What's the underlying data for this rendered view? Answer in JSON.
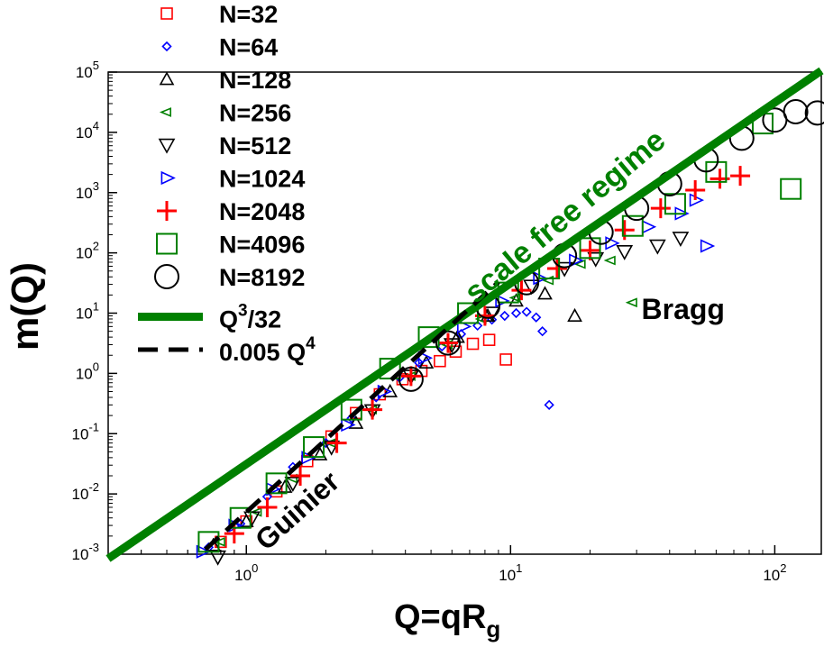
{
  "chart_data": {
    "type": "scatter",
    "xlabel": "Q=qR",
    "xlabel_sub": "g",
    "ylabel": "m(Q)",
    "xscale": "log",
    "yscale": "log",
    "xlim": [
      0.3,
      150
    ],
    "ylim": [
      0.001,
      100000
    ],
    "x_ticks": [
      {
        "value": 1,
        "base": "10",
        "exp": "0"
      },
      {
        "value": 10,
        "base": "10",
        "exp": "1"
      },
      {
        "value": 100,
        "base": "10",
        "exp": "2"
      }
    ],
    "y_ticks": [
      {
        "value": 0.001,
        "base": "10",
        "exp": "-3"
      },
      {
        "value": 0.01,
        "base": "10",
        "exp": "-2"
      },
      {
        "value": 0.1,
        "base": "10",
        "exp": "-1"
      },
      {
        "value": 1,
        "base": "10",
        "exp": "0"
      },
      {
        "value": 10,
        "base": "10",
        "exp": "1"
      },
      {
        "value": 100,
        "base": "10",
        "exp": "2"
      },
      {
        "value": 1000,
        "base": "10",
        "exp": "3"
      },
      {
        "value": 10000,
        "base": "10",
        "exp": "4"
      },
      {
        "value": 100000,
        "base": "10",
        "exp": "5"
      }
    ],
    "legend_position": "top-left",
    "series": [
      {
        "name": "N=32",
        "marker": "square",
        "size": 12,
        "color": "#ff0000",
        "points": [
          [
            0.8,
            0.0016
          ],
          [
            1.0,
            0.0035
          ],
          [
            1.3,
            0.011
          ],
          [
            1.7,
            0.035
          ],
          [
            2.1,
            0.09
          ],
          [
            2.6,
            0.22
          ],
          [
            3.2,
            0.45
          ],
          [
            3.9,
            0.8
          ],
          [
            4.6,
            1.1
          ],
          [
            5.4,
            1.6
          ],
          [
            6.2,
            2.3
          ],
          [
            7.2,
            3.1
          ],
          [
            8.3,
            3.6
          ],
          [
            9.6,
            1.7
          ]
        ]
      },
      {
        "name": "N=64",
        "marker": "diamond",
        "size": 9,
        "color": "#0000ff",
        "points": [
          [
            0.72,
            0.0013
          ],
          [
            0.95,
            0.0032
          ],
          [
            1.2,
            0.009
          ],
          [
            1.5,
            0.028
          ],
          [
            2.0,
            0.07
          ],
          [
            2.5,
            0.18
          ],
          [
            3.1,
            0.4
          ],
          [
            3.8,
            0.85
          ],
          [
            4.5,
            1.5
          ],
          [
            5.5,
            2.8
          ],
          [
            6.5,
            4.5
          ],
          [
            7.5,
            6.2
          ],
          [
            8.5,
            7.8
          ],
          [
            9.5,
            9
          ],
          [
            10.5,
            10
          ],
          [
            11.5,
            10.5
          ],
          [
            12.5,
            8.5
          ],
          [
            13.2,
            5
          ],
          [
            14,
            0.3
          ]
        ]
      },
      {
        "name": "N=128",
        "marker": "triangle-up",
        "size": 14,
        "color": "#000000",
        "points": [
          [
            0.75,
            0.0014
          ],
          [
            1.0,
            0.0035
          ],
          [
            1.4,
            0.013
          ],
          [
            1.9,
            0.045
          ],
          [
            2.6,
            0.15
          ],
          [
            3.5,
            0.5
          ],
          [
            4.8,
            1.5
          ],
          [
            6.3,
            4
          ],
          [
            8.2,
            9
          ],
          [
            10.5,
            16
          ],
          [
            13.5,
            21
          ],
          [
            17.5,
            9
          ]
        ]
      },
      {
        "name": "N=256",
        "marker": "triangle-left",
        "size": 12,
        "color": "#008000",
        "points": [
          [
            0.8,
            0.0016
          ],
          [
            1.1,
            0.005
          ],
          [
            1.5,
            0.018
          ],
          [
            2.1,
            0.07
          ],
          [
            3.0,
            0.25
          ],
          [
            4.2,
            0.9
          ],
          [
            5.8,
            3
          ],
          [
            7.8,
            8
          ],
          [
            10.5,
            18
          ],
          [
            14,
            35
          ],
          [
            18.5,
            65
          ],
          [
            24,
            75
          ],
          [
            29,
            15
          ]
        ]
      },
      {
        "name": "N=512",
        "marker": "triangle-down",
        "size": 16,
        "color": "#000000",
        "points": [
          [
            0.78,
            0.0009
          ],
          [
            1.05,
            0.004
          ],
          [
            1.5,
            0.015
          ],
          [
            2.1,
            0.06
          ],
          [
            3.0,
            0.24
          ],
          [
            4.2,
            0.9
          ],
          [
            6.0,
            3
          ],
          [
            8.5,
            10
          ],
          [
            12,
            28
          ],
          [
            16,
            55
          ],
          [
            21,
            80
          ],
          [
            27,
            105
          ],
          [
            36,
            130
          ],
          [
            44,
            175
          ]
        ]
      },
      {
        "name": "N=1024",
        "marker": "triangle-right",
        "size": 16,
        "color": "#0000ff",
        "points": [
          [
            0.68,
            0.0011
          ],
          [
            0.9,
            0.003
          ],
          [
            1.25,
            0.012
          ],
          [
            1.7,
            0.04
          ],
          [
            2.4,
            0.14
          ],
          [
            3.3,
            0.5
          ],
          [
            4.7,
            1.8
          ],
          [
            6.6,
            6
          ],
          [
            9.2,
            16
          ],
          [
            12.8,
            38
          ],
          [
            17.5,
            75
          ],
          [
            24,
            145
          ],
          [
            33,
            270
          ],
          [
            44,
            450
          ],
          [
            50,
            750
          ],
          [
            55,
            130
          ]
        ]
      },
      {
        "name": "N=2048",
        "marker": "plus",
        "size": 22,
        "color": "#ff0000",
        "points": [
          [
            0.9,
            0.0022
          ],
          [
            1.2,
            0.006
          ],
          [
            1.6,
            0.02
          ],
          [
            2.2,
            0.07
          ],
          [
            3.0,
            0.25
          ],
          [
            4.2,
            0.9
          ],
          [
            5.8,
            3.2
          ],
          [
            8.0,
            9
          ],
          [
            11,
            24
          ],
          [
            15,
            55
          ],
          [
            20,
            110
          ],
          [
            27,
            240
          ],
          [
            37,
            550
          ],
          [
            50,
            1100
          ],
          [
            62,
            1700
          ],
          [
            74,
            1900
          ]
        ]
      },
      {
        "name": "N=4096",
        "marker": "square",
        "size": 22,
        "color": "#008000",
        "points": [
          [
            0.72,
            0.0016
          ],
          [
            0.95,
            0.004
          ],
          [
            1.3,
            0.015
          ],
          [
            1.8,
            0.06
          ],
          [
            2.5,
            0.25
          ],
          [
            3.5,
            1.2
          ],
          [
            4.9,
            4
          ],
          [
            6.9,
            10
          ],
          [
            9.8,
            22
          ],
          [
            14,
            55
          ],
          [
            20,
            120
          ],
          [
            29,
            280
          ],
          [
            42,
            650
          ],
          [
            60,
            2200
          ],
          [
            90,
            14000
          ],
          [
            115,
            1150
          ]
        ]
      },
      {
        "name": "N=8192",
        "marker": "circle",
        "size": 26,
        "color": "#000000",
        "points": [
          [
            4.2,
            0.8
          ],
          [
            5.8,
            3.2
          ],
          [
            8.2,
            13
          ],
          [
            11.5,
            32
          ],
          [
            16,
            90
          ],
          [
            22,
            220
          ],
          [
            30,
            550
          ],
          [
            40,
            1400
          ],
          [
            55,
            3500
          ],
          [
            75,
            8000
          ],
          [
            100,
            16000
          ],
          [
            120,
            22000
          ],
          [
            145,
            21000
          ]
        ]
      }
    ],
    "lines": [
      {
        "name": "Q³/32",
        "label_base": "Q",
        "label_sup": "3",
        "label_rest": "/32",
        "coeff": 0.03125,
        "power": 3,
        "x_range": [
          0.3,
          150
        ],
        "color": "#008000",
        "style": "solid"
      },
      {
        "name": "0.005 Q⁴",
        "label_base": "0.005 Q",
        "label_sup": "4",
        "label_rest": "",
        "coeff": 0.005,
        "power": 4,
        "x_range": [
          0.7,
          9.0
        ],
        "color": "#000000",
        "style": "dashed"
      }
    ],
    "annotations": [
      {
        "text": "scale free regime",
        "x": 17,
        "y": 300,
        "color": "#008000",
        "rotate": -40,
        "size": 34
      },
      {
        "text": "Bragg",
        "x": 45,
        "y": 8,
        "color": "#000000",
        "rotate": 0,
        "size": 32
      },
      {
        "text": "Guinier",
        "x": 1.65,
        "y": 0.004,
        "color": "#000000",
        "rotate": -42,
        "size": 32
      }
    ]
  }
}
